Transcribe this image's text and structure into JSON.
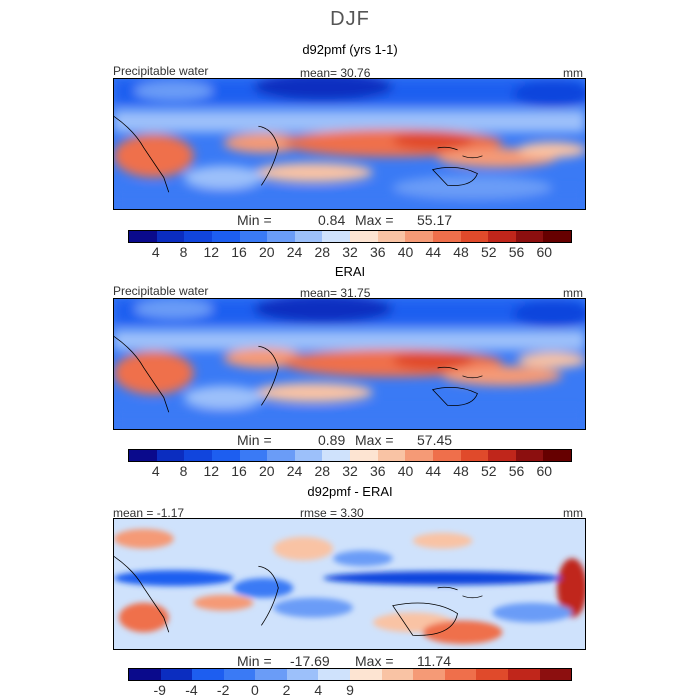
{
  "title": "DJF",
  "panels": [
    {
      "title": "d92pmf (yrs 1-1)",
      "left_label": "Precipitable water",
      "center_label": "mean=  30.76",
      "units": "mm",
      "min_label": "Min =",
      "min_value": "0.84",
      "max_label": "Max =",
      "max_value": "55.17",
      "colorbar_ticks": [
        "4",
        "8",
        "12",
        "16",
        "20",
        "24",
        "28",
        "32",
        "36",
        "40",
        "44",
        "48",
        "52",
        "56",
        "60"
      ],
      "colorbar_colors": [
        "#0a0a8c",
        "#0b2dc0",
        "#1145dd",
        "#1d5ef0",
        "#3a7af5",
        "#6a9cf7",
        "#9cc0fa",
        "#cfe2fc",
        "#fde4d2",
        "#f9c3a4",
        "#f59a76",
        "#ef6f4b",
        "#e04a2b",
        "#c0261b",
        "#8c0f0f",
        "#660000"
      ]
    },
    {
      "title": "ERAI",
      "left_label": "Precipitable water",
      "center_label": "mean=  31.75",
      "units": "mm",
      "min_label": "Min =",
      "min_value": "0.89",
      "max_label": "Max =",
      "max_value": "57.45",
      "colorbar_ticks": [
        "4",
        "8",
        "12",
        "16",
        "20",
        "24",
        "28",
        "32",
        "36",
        "40",
        "44",
        "48",
        "52",
        "56",
        "60"
      ],
      "colorbar_colors": [
        "#0a0a8c",
        "#0b2dc0",
        "#1145dd",
        "#1d5ef0",
        "#3a7af5",
        "#6a9cf7",
        "#9cc0fa",
        "#cfe2fc",
        "#fde4d2",
        "#f9c3a4",
        "#f59a76",
        "#ef6f4b",
        "#e04a2b",
        "#c0261b",
        "#8c0f0f",
        "#660000"
      ]
    },
    {
      "title": "d92pmf - ERAI",
      "left_label": "mean =  -1.17",
      "center_label": "rmse =   3.30",
      "units": "mm",
      "min_label": "Min =",
      "min_value": "-17.69",
      "max_label": "Max =",
      "max_value": "11.74",
      "colorbar_ticks": [
        "-9",
        "-4",
        "-2",
        "0",
        "2",
        "4",
        "9"
      ],
      "colorbar_colors": [
        "#0a0a8c",
        "#0b2dc0",
        "#1d5ef0",
        "#3a7af5",
        "#6a9cf7",
        "#9cc0fa",
        "#cfe2fc",
        "#fde4d2",
        "#f9c3a4",
        "#f59a76",
        "#ef6f4b",
        "#e04a2b",
        "#c0261b",
        "#8c0f0f"
      ]
    }
  ],
  "chart_data": [
    {
      "type": "heatmap",
      "title": "d92pmf (yrs 1-1)",
      "variable": "Precipitable water",
      "units": "mm",
      "mean": 30.76,
      "min": 0.84,
      "max": 55.17,
      "colorbar_levels": [
        4,
        8,
        12,
        16,
        20,
        24,
        28,
        32,
        36,
        40,
        44,
        48,
        52,
        56,
        60
      ]
    },
    {
      "type": "heatmap",
      "title": "ERAI",
      "variable": "Precipitable water",
      "units": "mm",
      "mean": 31.75,
      "min": 0.89,
      "max": 57.45,
      "colorbar_levels": [
        4,
        8,
        12,
        16,
        20,
        24,
        28,
        32,
        36,
        40,
        44,
        48,
        52,
        56,
        60
      ]
    },
    {
      "type": "heatmap",
      "title": "d92pmf - ERAI",
      "units": "mm",
      "mean": -1.17,
      "rmse": 3.3,
      "min": -17.69,
      "max": 11.74,
      "colorbar_levels": [
        -9,
        -4,
        -2,
        0,
        2,
        4,
        9
      ]
    }
  ]
}
